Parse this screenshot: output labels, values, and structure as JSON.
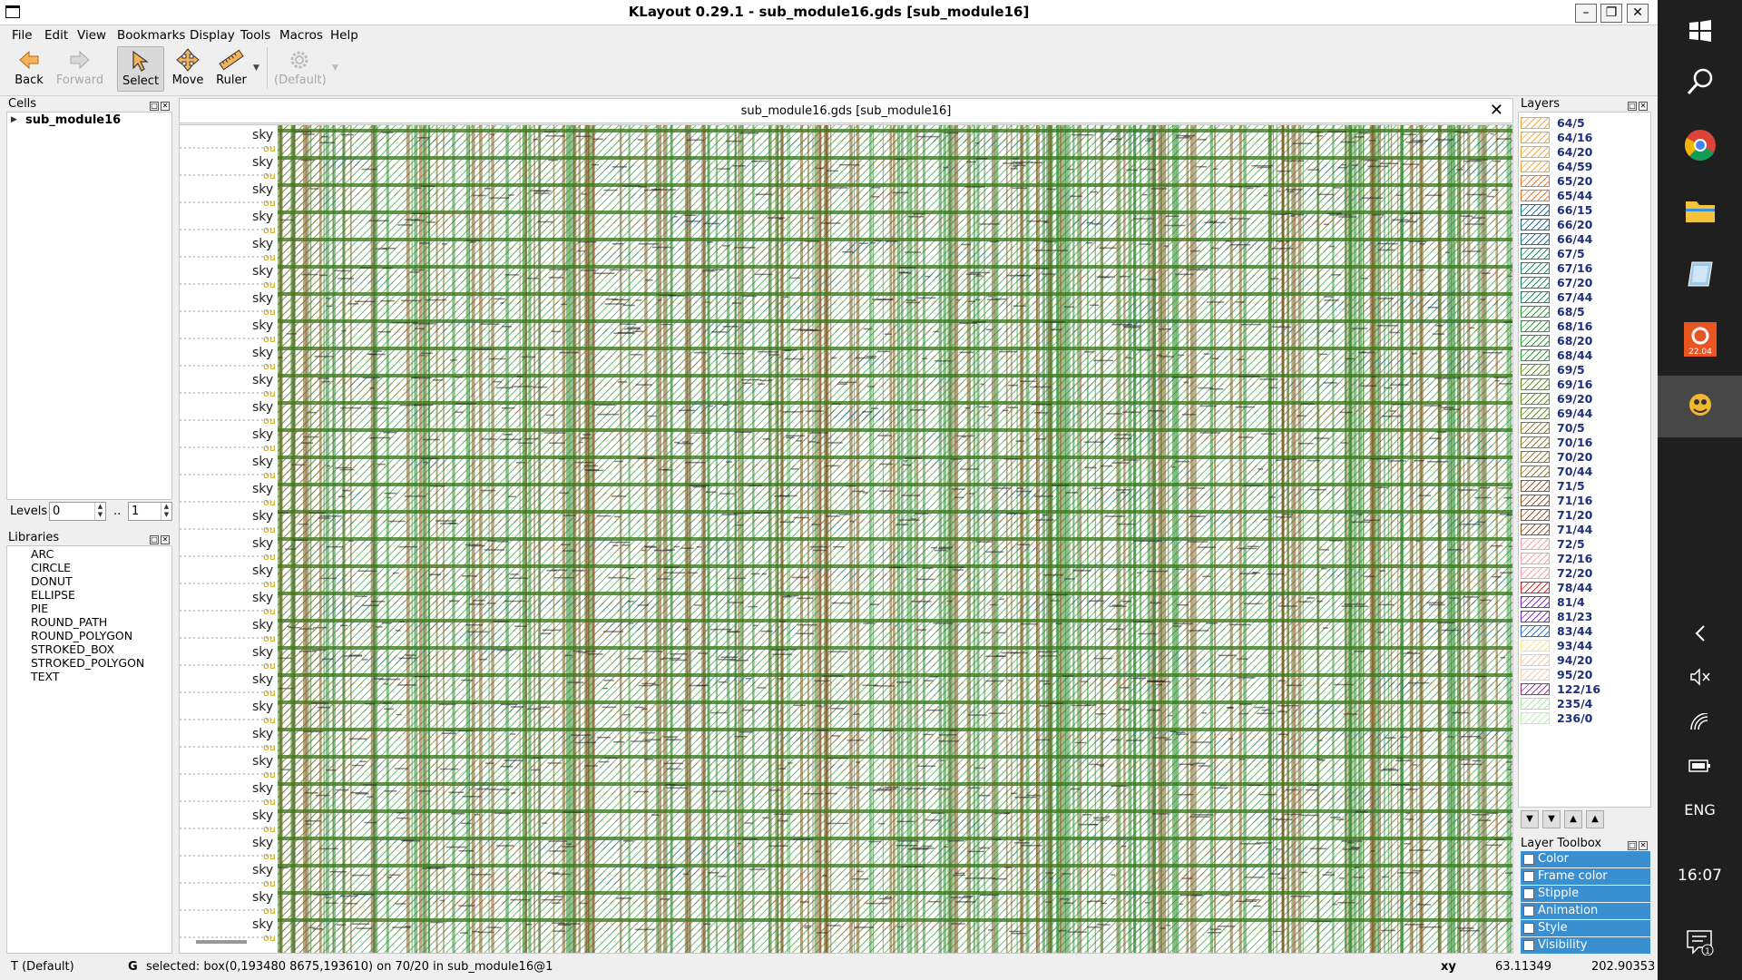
{
  "window": {
    "title": "KLayout 0.29.1 - sub_module16.gds [sub_module16]",
    "minimize_icon": "minimize-icon",
    "maximize_icon": "maximize-icon",
    "close_icon": "close-icon"
  },
  "menu": [
    "File",
    "Edit",
    "View",
    "Bookmarks",
    "Display",
    "Tools",
    "Macros",
    "Help"
  ],
  "toolbar": {
    "back": "Back",
    "forward": "Forward",
    "select": "Select",
    "move": "Move",
    "ruler": "Ruler",
    "default_mode": "(Default)"
  },
  "cells": {
    "title": "Cells",
    "tree": [
      {
        "name": "sub_module16",
        "expanded": false
      }
    ]
  },
  "levels": {
    "label": "Levels",
    "min": "0",
    "separator": "..",
    "max": "1"
  },
  "libraries": {
    "title": "Libraries",
    "items": [
      "ARC",
      "CIRCLE",
      "DONUT",
      "ELLIPSE",
      "PIE",
      "ROUND_PATH",
      "ROUND_POLYGON",
      "STROKED_BOX",
      "STROKED_POLYGON",
      "TEXT"
    ]
  },
  "view": {
    "tab_title": "sub_module16.gds [sub_module16]",
    "row_label_prefix": "sky",
    "row_label_sub": "ou",
    "row_count": 30
  },
  "layers": {
    "title": "Layers",
    "items": [
      {
        "name": "64/5",
        "color": "#f2a93b",
        "style": "hatch"
      },
      {
        "name": "64/16",
        "color": "#f2a93b",
        "style": "hatch"
      },
      {
        "name": "64/20",
        "color": "#f2a93b",
        "style": "hatch"
      },
      {
        "name": "64/59",
        "color": "#f2a93b",
        "style": "hatch"
      },
      {
        "name": "65/20",
        "color": "#e87b2a",
        "style": "hatch"
      },
      {
        "name": "65/44",
        "color": "#e87b2a",
        "style": "hatch"
      },
      {
        "name": "66/15",
        "color": "#1e6f8f",
        "style": "hatch"
      },
      {
        "name": "66/20",
        "color": "#1e6f8f",
        "style": "hatch"
      },
      {
        "name": "66/44",
        "color": "#1e6f8f",
        "style": "hatch"
      },
      {
        "name": "67/5",
        "color": "#1f8a6a",
        "style": "hatch"
      },
      {
        "name": "67/16",
        "color": "#1f8a6a",
        "style": "hatch"
      },
      {
        "name": "67/20",
        "color": "#1f8a6a",
        "style": "hatch"
      },
      {
        "name": "67/44",
        "color": "#1f8a6a",
        "style": "hatch"
      },
      {
        "name": "68/5",
        "color": "#2e9a3a",
        "style": "hatch"
      },
      {
        "name": "68/16",
        "color": "#2e9a3a",
        "style": "hatch"
      },
      {
        "name": "68/20",
        "color": "#2e9a3a",
        "style": "hatch"
      },
      {
        "name": "68/44",
        "color": "#2e9a3a",
        "style": "hatch"
      },
      {
        "name": "69/5",
        "color": "#6b8e23",
        "style": "hatch"
      },
      {
        "name": "69/16",
        "color": "#6b8e23",
        "style": "hatch"
      },
      {
        "name": "69/20",
        "color": "#6b8e23",
        "style": "hatch"
      },
      {
        "name": "69/44",
        "color": "#6b8e23",
        "style": "hatch"
      },
      {
        "name": "70/5",
        "color": "#8a7a2a",
        "style": "hatch"
      },
      {
        "name": "70/16",
        "color": "#8a7a2a",
        "style": "hatch"
      },
      {
        "name": "70/20",
        "color": "#8a7a2a",
        "style": "hatch"
      },
      {
        "name": "70/44",
        "color": "#8a7a2a",
        "style": "hatch"
      },
      {
        "name": "71/5",
        "color": "#8b5a2b",
        "style": "hatch"
      },
      {
        "name": "71/16",
        "color": "#8b5a2b",
        "style": "hatch"
      },
      {
        "name": "71/20",
        "color": "#8b5a2b",
        "style": "hatch"
      },
      {
        "name": "71/44",
        "color": "#8b5a2b",
        "style": "hatch"
      },
      {
        "name": "72/5",
        "color": "#f4a0b0",
        "style": "hatch"
      },
      {
        "name": "72/16",
        "color": "#f4a0b0",
        "style": "hatch"
      },
      {
        "name": "72/20",
        "color": "#f4a0b0",
        "style": "hatch"
      },
      {
        "name": "78/44",
        "color": "#d62828",
        "style": "hatch"
      },
      {
        "name": "81/4",
        "color": "#7b2fbf",
        "style": "hatch"
      },
      {
        "name": "81/23",
        "color": "#7b2fbf",
        "style": "hatch"
      },
      {
        "name": "83/44",
        "color": "#2f6fd0",
        "style": "hatch"
      },
      {
        "name": "93/44",
        "color": "#f6e58d",
        "style": "hatch"
      },
      {
        "name": "94/20",
        "color": "#f5c6a0",
        "style": "hatch"
      },
      {
        "name": "95/20",
        "color": "#f7c9a9",
        "style": "hatch"
      },
      {
        "name": "122/16",
        "color": "#8e3a8e",
        "style": "hatch"
      },
      {
        "name": "235/4",
        "color": "#a8e6a1",
        "style": "hatch"
      },
      {
        "name": "236/0",
        "color": "#b8f0b0",
        "style": "hatch"
      }
    ]
  },
  "layer_toolbox": {
    "title": "Layer Toolbox",
    "items": [
      "Color",
      "Frame color",
      "Stipple",
      "Animation",
      "Style",
      "Visibility"
    ]
  },
  "status": {
    "mode": "T  (Default)",
    "grid_flag": "G",
    "message": "selected: box(0,193480 8675,193610) on 70/20 in sub_module16@1",
    "coord_label": "xy",
    "x": "63.11349",
    "y": "202.90353"
  },
  "taskbar": {
    "icons": [
      "windows-start-icon",
      "search-icon",
      "chrome-icon",
      "file-explorer-icon",
      "app-icon",
      "ubuntu-icon",
      "klayout-icon"
    ],
    "badge": "22.04",
    "language": "ENG",
    "time": "16:07",
    "notification_count": "1"
  }
}
